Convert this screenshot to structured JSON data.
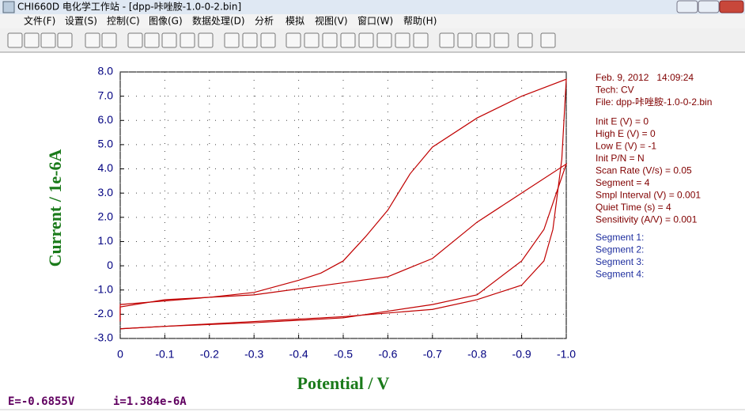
{
  "window": {
    "title": "CHI660D 电化学工作站 - [dpp-咔唑胺-1.0-0-2.bin]"
  },
  "menu": [
    "文件(F)",
    "设置(S)",
    "控制(C)",
    "图像(G)",
    "数据处理(D)",
    "分析",
    "模拟",
    "视图(V)",
    "窗口(W)",
    "帮助(H)"
  ],
  "chart_data": {
    "type": "line",
    "xlabel": "Potential / V",
    "ylabel": "Current / 1e-6A",
    "xlim": [
      0,
      -1
    ],
    "ylim": [
      -3,
      8
    ],
    "xticks": [
      0,
      -0.1,
      -0.2,
      -0.3,
      -0.4,
      -0.5,
      -0.6,
      -0.7,
      -0.8,
      -0.9,
      {
        "value": -1,
        "label": "-1.0"
      }
    ],
    "yticks": [
      {
        "value": 8,
        "label": "8.0"
      },
      {
        "value": 7,
        "label": "7.0"
      },
      {
        "value": 6,
        "label": "6.0"
      },
      {
        "value": 5,
        "label": "5.0"
      },
      {
        "value": 4,
        "label": "4.0"
      },
      {
        "value": 3,
        "label": "3.0"
      },
      {
        "value": 2,
        "label": "2.0"
      },
      {
        "value": 1,
        "label": "1.0"
      },
      0,
      {
        "value": -1,
        "label": "-1.0"
      },
      {
        "value": -2,
        "label": "-2.0"
      },
      {
        "value": -3,
        "label": "-3.0"
      }
    ],
    "grid": true,
    "series": [
      {
        "color": "#c00000",
        "x": [
          0,
          0,
          -0.1,
          -0.2,
          -0.3,
          -0.4,
          -0.45,
          -0.5,
          -0.55,
          -0.6,
          -0.65,
          -0.7,
          -0.8,
          -0.9,
          -1.0,
          -0.99,
          -0.97,
          -0.95,
          -0.9,
          -0.8,
          -0.7,
          -0.5,
          -0.3,
          -0.1,
          0
        ],
        "values": [
          -2.3,
          -1.6,
          -1.45,
          -1.3,
          -1.1,
          -0.6,
          -0.3,
          0.2,
          1.2,
          2.3,
          3.8,
          4.9,
          6.1,
          7.0,
          7.7,
          4.4,
          1.5,
          0.2,
          -0.8,
          -1.4,
          -1.8,
          -2.1,
          -2.3,
          -2.5,
          -2.6
        ]
      },
      {
        "color": "#c00000",
        "x": [
          0,
          -0.1,
          -0.3,
          -0.5,
          -0.7,
          -0.8,
          -0.9,
          -0.95,
          -1.0,
          -0.9,
          -0.85,
          -0.8,
          -0.7,
          -0.6,
          -0.5,
          -0.3,
          -0.1,
          0,
          0
        ],
        "values": [
          -2.6,
          -2.5,
          -2.35,
          -2.15,
          -1.6,
          -1.2,
          0.2,
          1.5,
          4.2,
          3.0,
          2.4,
          1.8,
          0.3,
          -0.45,
          -0.7,
          -1.2,
          -1.4,
          -1.7,
          -2.3
        ]
      }
    ]
  },
  "info": {
    "date": "Feb. 9, 2012   14:09:24",
    "lines": [
      "Tech: CV",
      "File: dpp-咔唑胺-1.0-0-2.bin"
    ],
    "params": [
      "Init E (V) = 0",
      "High E (V) = 0",
      "Low E (V) = -1",
      "Init P/N = N",
      "Scan Rate (V/s) = 0.05",
      "Segment = 4",
      "Smpl Interval (V) = 0.001",
      "Quiet Time (s) = 4",
      "Sensitivity (A/V) = 0.001"
    ],
    "segments": [
      "Segment 1:",
      "Segment 2:",
      "Segment 3:",
      "Segment 4:"
    ]
  },
  "status": {
    "potential": "E=-0.6855V",
    "current": "i=1.384e-6A"
  }
}
